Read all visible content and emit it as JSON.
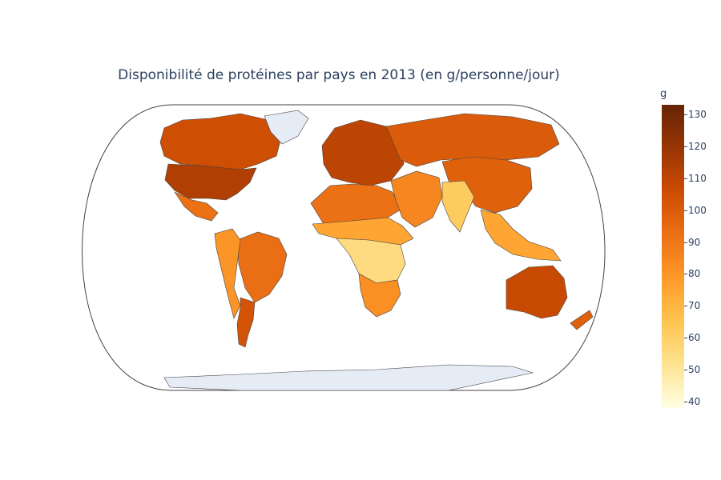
{
  "chart_data": {
    "type": "choropleth",
    "title": "Disponibilité de protéines par pays en 2013 (en g/personne/jour)",
    "projection": "natural earth",
    "no_data_color": "#e5ecf6",
    "colorscale": [
      "#ffffe5",
      "#fee391",
      "#fec44f",
      "#fe9929",
      "#ec7014",
      "#cc4c02",
      "#993404",
      "#662506"
    ],
    "colorbar": {
      "title": "g",
      "range": [
        38,
        133
      ],
      "ticks": [
        "130",
        "120",
        "110",
        "100",
        "90",
        "80",
        "70",
        "60",
        "50",
        "40"
      ]
    },
    "regions": [
      {
        "name": "United States",
        "value": 113
      },
      {
        "name": "Canada",
        "value": 105
      },
      {
        "name": "Mexico",
        "value": 92
      },
      {
        "name": "Brazil",
        "value": 93
      },
      {
        "name": "Argentina",
        "value": 103
      },
      {
        "name": "Andean countries",
        "value": 80
      },
      {
        "name": "Europe",
        "value": 110
      },
      {
        "name": "Russia",
        "value": 100
      },
      {
        "name": "China",
        "value": 98
      },
      {
        "name": "India",
        "value": 62
      },
      {
        "name": "Australia",
        "value": 107
      },
      {
        "name": "New Zealand",
        "value": 98
      },
      {
        "name": "North Africa",
        "value": 92
      },
      {
        "name": "Sahel",
        "value": 75
      },
      {
        "name": "Central Africa",
        "value": 55
      },
      {
        "name": "Southern Africa",
        "value": 82
      },
      {
        "name": "Middle East",
        "value": 85
      },
      {
        "name": "Southeast Asia",
        "value": 75
      },
      {
        "name": "Greenland",
        "value": null
      },
      {
        "name": "Antarctica",
        "value": null
      }
    ]
  }
}
